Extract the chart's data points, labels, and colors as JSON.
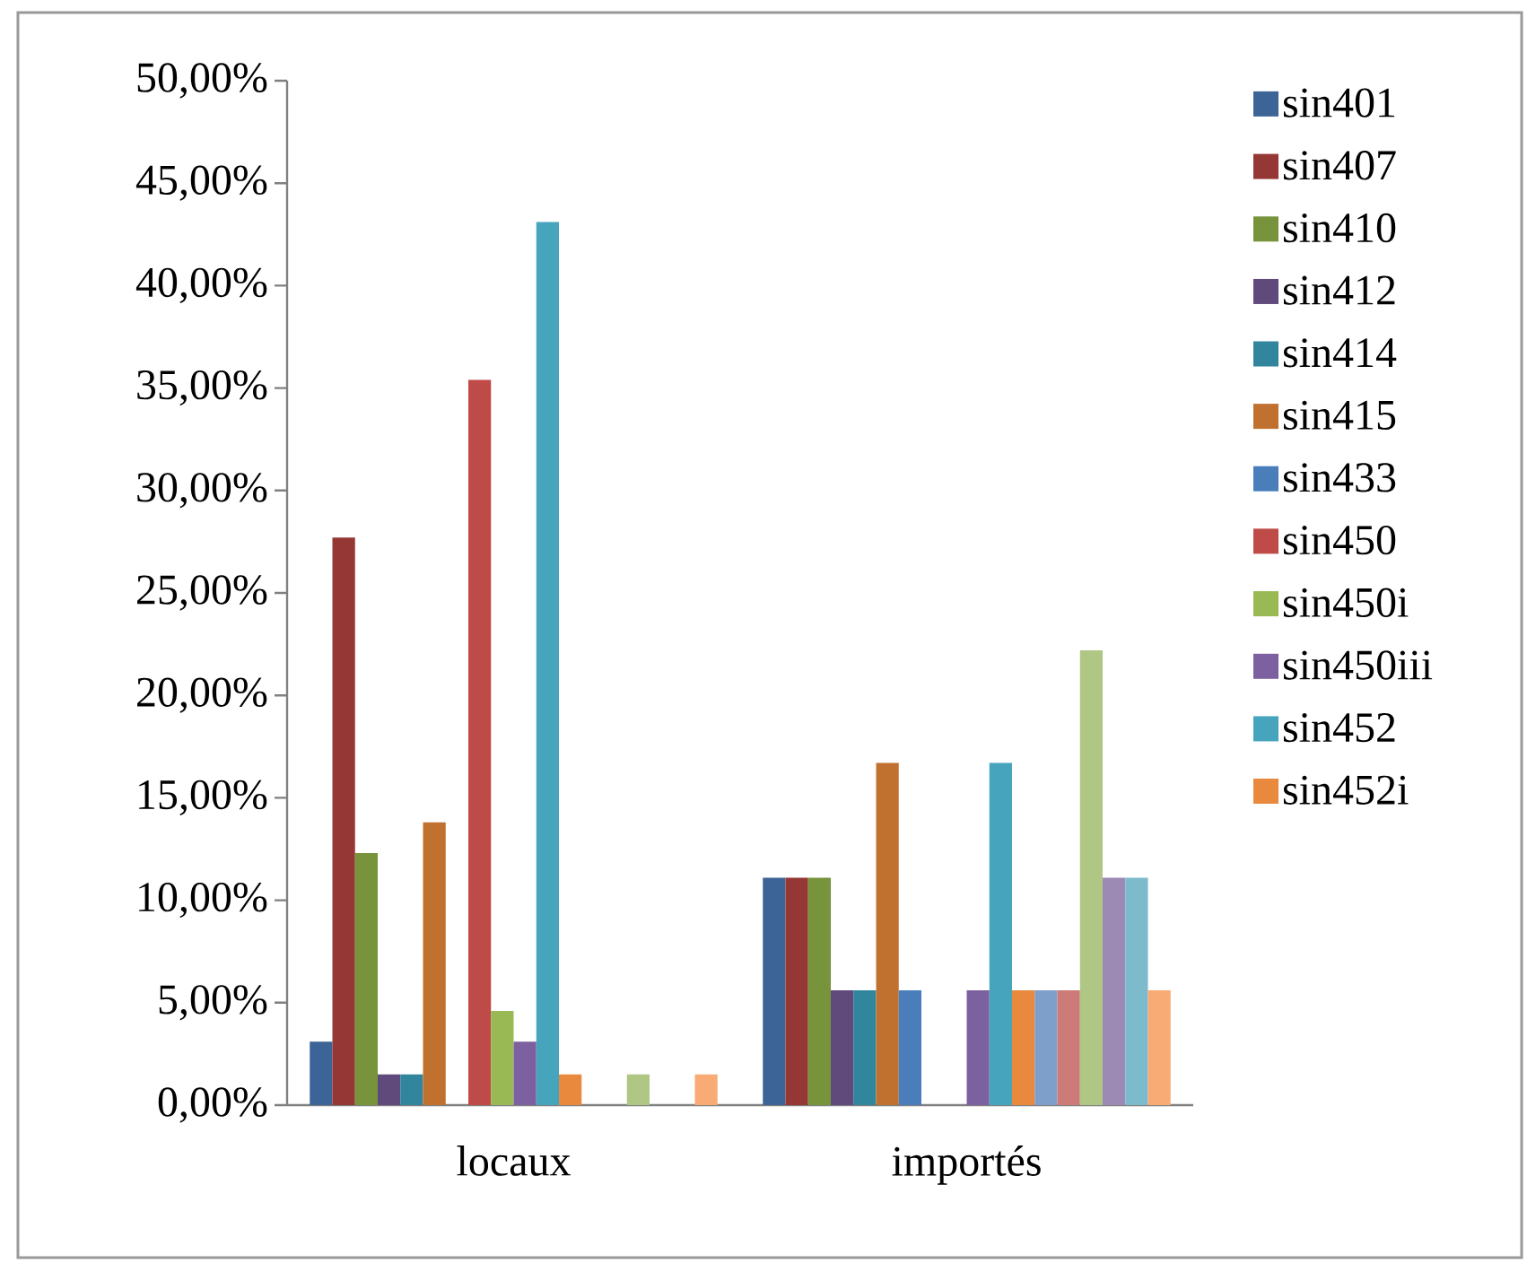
{
  "chart_data": {
    "type": "bar",
    "categories": [
      "locaux",
      "importés"
    ],
    "series": [
      {
        "name": "sin401",
        "color": "#3c6496",
        "values": [
          3.1,
          11.1
        ]
      },
      {
        "name": "sin407",
        "color": "#953735",
        "values": [
          27.7,
          11.1
        ]
      },
      {
        "name": "sin410",
        "color": "#77933c",
        "values": [
          12.3,
          11.1
        ]
      },
      {
        "name": "sin412",
        "color": "#604a7b",
        "values": [
          1.5,
          5.6
        ]
      },
      {
        "name": "sin414",
        "color": "#31859c",
        "values": [
          1.5,
          5.6
        ]
      },
      {
        "name": "sin415",
        "color": "#c0712f",
        "values": [
          13.8,
          16.7
        ]
      },
      {
        "name": "sin433",
        "color": "#4a7ebb",
        "values": [
          0,
          5.6
        ]
      },
      {
        "name": "sin450",
        "color": "#be4b48",
        "values": [
          35.4,
          0
        ]
      },
      {
        "name": "sin450i",
        "color": "#98b954",
        "values": [
          4.6,
          0
        ]
      },
      {
        "name": "sin450iii",
        "color": "#7d60a0",
        "values": [
          3.1,
          5.6
        ]
      },
      {
        "name": "sin452",
        "color": "#46a4bd",
        "values": [
          43.1,
          16.7
        ]
      },
      {
        "name": "sin452i",
        "color": "#e8893e",
        "values": [
          1.5,
          5.6
        ]
      },
      {
        "color": "#7f9fcb",
        "values": [
          0,
          5.6
        ]
      },
      {
        "color": "#cc7b79",
        "values": [
          0,
          5.6
        ]
      },
      {
        "color": "#afc685",
        "values": [
          1.5,
          22.2
        ]
      },
      {
        "color": "#9c8ab4",
        "values": [
          0,
          11.1
        ]
      },
      {
        "color": "#7cbacc",
        "values": [
          0,
          11.1
        ]
      },
      {
        "color": "#f9ab76",
        "values": [
          1.5,
          5.6
        ]
      }
    ],
    "ylim": [
      0,
      50
    ],
    "yticks": [
      {
        "value": 0,
        "label": "0,00%"
      },
      {
        "value": 5,
        "label": "5,00%"
      },
      {
        "value": 10,
        "label": "10,00%"
      },
      {
        "value": 15,
        "label": "15,00%"
      },
      {
        "value": 20,
        "label": "20,00%"
      },
      {
        "value": 25,
        "label": "25,00%"
      },
      {
        "value": 30,
        "label": "30,00%"
      },
      {
        "value": 35,
        "label": "35,00%"
      },
      {
        "value": 40,
        "label": "40,00%"
      },
      {
        "value": 45,
        "label": "45,00%"
      },
      {
        "value": 50,
        "label": "50,00%"
      }
    ],
    "legend": "right",
    "grid": false
  }
}
